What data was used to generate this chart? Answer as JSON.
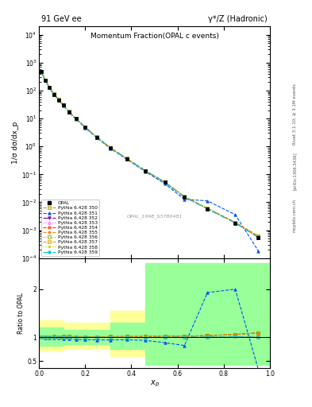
{
  "title_top": "91 GeV ee",
  "title_right": "γ*/Z (Hadronic)",
  "main_title": "Momentum Fraction(OPAL c events)",
  "xlabel": "x_p",
  "ylabel_main": "1/σ dσ/dx_p",
  "ylabel_ratio": "Ratio to OPAL",
  "ref_label": "OPAL_1998_S3780481",
  "right_label": "Rivet 3.1.10; ≥ 3.1M events",
  "arxiv_label": "[arXiv:1306.3436]",
  "mcplots_label": "mcplots.cern.ch",
  "xp_data": [
    0.009,
    0.027,
    0.045,
    0.065,
    0.085,
    0.105,
    0.13,
    0.16,
    0.2,
    0.25,
    0.31,
    0.38,
    0.46,
    0.545,
    0.63,
    0.73,
    0.85,
    0.95
  ],
  "opal_y": [
    490,
    235,
    128,
    74,
    47,
    30,
    17.5,
    9.8,
    4.9,
    2.15,
    0.88,
    0.365,
    0.135,
    0.052,
    0.0155,
    0.0058,
    0.0018,
    0.00055
  ],
  "opal_yerr": [
    25,
    12,
    7,
    4,
    2.5,
    1.8,
    1.1,
    0.6,
    0.3,
    0.13,
    0.055,
    0.022,
    0.009,
    0.003,
    0.0012,
    0.0005,
    0.00015,
    8e-05
  ],
  "mc_350_y": [
    490,
    235,
    129,
    75,
    47.5,
    30.5,
    17.8,
    9.9,
    4.95,
    2.17,
    0.89,
    0.37,
    0.137,
    0.053,
    0.0158,
    0.006,
    0.0019,
    0.0006
  ],
  "mc_351_y": [
    490,
    232,
    127,
    73,
    46,
    29,
    17.0,
    9.3,
    4.65,
    2.03,
    0.83,
    0.345,
    0.126,
    0.046,
    0.0128,
    0.0112,
    0.0036,
    0.00018
  ],
  "mc_352_y": [
    490,
    234,
    128,
    74,
    47,
    30,
    17.5,
    9.75,
    4.88,
    2.14,
    0.877,
    0.363,
    0.134,
    0.052,
    0.0155,
    0.0058,
    0.00182,
    0.00055
  ],
  "mc_353_y": [
    490,
    234,
    128,
    74.5,
    47.2,
    30.2,
    17.6,
    9.8,
    4.9,
    2.15,
    0.88,
    0.365,
    0.135,
    0.052,
    0.0156,
    0.0058,
    0.00183,
    0.00056
  ],
  "mc_354_y": [
    490,
    235,
    129,
    75,
    47.5,
    30.5,
    17.8,
    9.9,
    4.95,
    2.17,
    0.89,
    0.37,
    0.137,
    0.053,
    0.0158,
    0.006,
    0.0019,
    0.0006
  ],
  "mc_355_y": [
    490,
    235,
    129,
    75,
    47.5,
    30.5,
    17.8,
    9.9,
    4.95,
    2.17,
    0.89,
    0.37,
    0.137,
    0.053,
    0.0158,
    0.006,
    0.0019,
    0.0006
  ],
  "mc_356_y": [
    490,
    235,
    129,
    75,
    47.5,
    30.5,
    17.8,
    9.9,
    4.95,
    2.17,
    0.89,
    0.37,
    0.137,
    0.053,
    0.0158,
    0.006,
    0.0019,
    0.0006
  ],
  "mc_357_y": [
    490,
    234,
    128,
    74,
    47,
    30,
    17.5,
    9.75,
    4.88,
    2.14,
    0.877,
    0.363,
    0.134,
    0.052,
    0.0155,
    0.0058,
    0.00182,
    0.00055
  ],
  "mc_358_y": [
    490,
    234,
    128,
    74,
    47,
    30,
    17.5,
    9.75,
    4.88,
    2.14,
    0.877,
    0.363,
    0.134,
    0.052,
    0.0155,
    0.0058,
    0.00182,
    0.00055
  ],
  "mc_359_y": [
    490,
    234,
    128,
    74,
    47,
    30,
    17.5,
    9.75,
    4.88,
    2.14,
    0.877,
    0.363,
    0.134,
    0.052,
    0.0155,
    0.0058,
    0.00182,
    0.00055
  ],
  "mc_colors": {
    "350": "#b8a000",
    "351": "#0055ff",
    "352": "#7b00b4",
    "353": "#ff55ff",
    "354": "#ff3300",
    "355": "#ff8800",
    "356": "#88aa00",
    "357": "#ddaa00",
    "358": "#cccc00",
    "359": "#00cccc"
  },
  "mc_markers": {
    "350": "s",
    "351": "^",
    "352": "v",
    "353": "^",
    "354": "o",
    "355": "*",
    "356": "s",
    "357": "s",
    "358": ".",
    "359": "o"
  },
  "mc_linestyles": {
    "350": "--",
    "351": "--",
    "352": "-.",
    "353": ":",
    "354": "--",
    "355": "--",
    "356": ":",
    "357": "--",
    "358": ":",
    "359": "-."
  },
  "mc_filled": {
    "350": false,
    "351": true,
    "352": true,
    "353": false,
    "354": false,
    "355": true,
    "356": false,
    "357": false,
    "358": true,
    "359": true
  },
  "band_yellow_color": "#ffff99",
  "band_green_color": "#99ff99",
  "ratio_ylim": [
    0.35,
    2.65
  ],
  "ratio_yticks": [
    0.5,
    1.0,
    2.0
  ],
  "main_ylim_log": [
    0.0001,
    20000.0
  ],
  "main_xlim": [
    0.0,
    1.0
  ]
}
